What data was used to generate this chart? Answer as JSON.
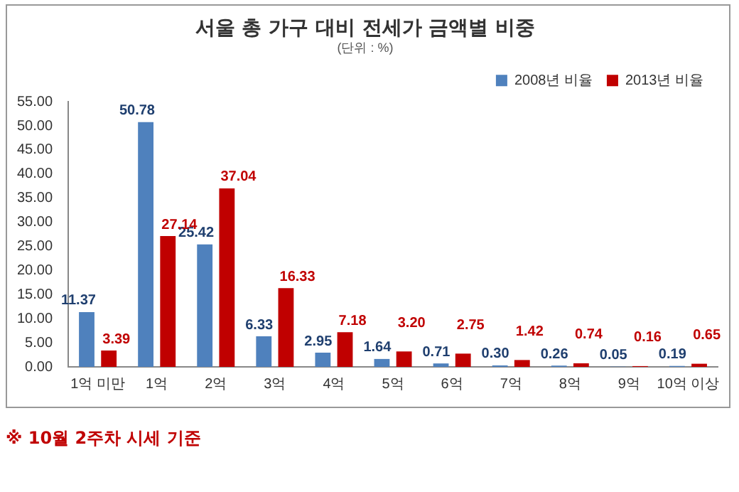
{
  "chart_data": {
    "type": "bar",
    "title": "서울 총 가구 대비 전세가 금액별 비중",
    "subtitle": "(단위 : %)",
    "categories": [
      "1억 미만",
      "1억",
      "2억",
      "3억",
      "4억",
      "5억",
      "6억",
      "7억",
      "8억",
      "9억",
      "10억 이상"
    ],
    "series": [
      {
        "name": "2008년 비율",
        "color": "#4f81bd",
        "values": [
          11.37,
          50.78,
          25.42,
          6.33,
          2.95,
          1.64,
          0.71,
          0.3,
          0.26,
          0.05,
          0.19
        ],
        "value_labels": [
          "11.37",
          "50.78",
          "25.42",
          "6.33",
          "2.95",
          "1.64",
          "0.71",
          "0.30",
          "0.26",
          "0.05",
          "0.19"
        ]
      },
      {
        "name": "2013년 비율",
        "color": "#c00000",
        "values": [
          3.39,
          27.14,
          37.04,
          16.33,
          7.18,
          3.2,
          2.75,
          1.42,
          0.74,
          0.16,
          0.65
        ],
        "value_labels": [
          "3.39",
          "27.14",
          "37.04",
          "16.33",
          "7.18",
          "3.20",
          "2.75",
          "1.42",
          "0.74",
          "0.16",
          "0.65"
        ]
      }
    ],
    "ylim": [
      0,
      55
    ],
    "yticks": [
      {
        "value": 0,
        "label": "0.00"
      },
      {
        "value": 5,
        "label": "5.00"
      },
      {
        "value": 10,
        "label": "10.00"
      },
      {
        "value": 15,
        "label": "15.00"
      },
      {
        "value": 20,
        "label": "20.00"
      },
      {
        "value": 25,
        "label": "25.00"
      },
      {
        "value": 30,
        "label": "30.00"
      },
      {
        "value": 35,
        "label": "35.00"
      },
      {
        "value": 40,
        "label": "40.00"
      },
      {
        "value": 45,
        "label": "45.00"
      },
      {
        "value": 50,
        "label": "50.00"
      },
      {
        "value": 55,
        "label": "55.00"
      }
    ],
    "legend": "top right",
    "annotations": [
      "※ 10월 2주차 시세 기준"
    ]
  }
}
